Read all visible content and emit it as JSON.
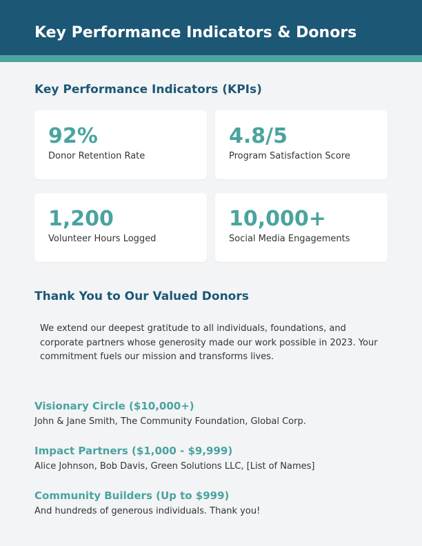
{
  "header": {
    "title": "Key Performance Indicators & Donors"
  },
  "kpis": {
    "title": "Key Performance Indicators (KPIs)",
    "items": [
      {
        "value": "92%",
        "label": "Donor Retention Rate"
      },
      {
        "value": "4.8/5",
        "label": "Program Satisfaction Score"
      },
      {
        "value": "1,200",
        "label": "Volunteer Hours Logged"
      },
      {
        "value": "10,000+",
        "label": "Social Media Engagements"
      }
    ]
  },
  "donors": {
    "title": "Thank You to Our Valued Donors",
    "message": "We extend our deepest gratitude to all individuals, foundations, and corporate partners whose generosity made our work possible in 2023. Your commitment fuels our mission and transforms lives.",
    "tiers": [
      {
        "name": "Visionary Circle ($10,000+)",
        "donors": "John & Jane Smith, The Community Foundation, Global Corp."
      },
      {
        "name": "Impact Partners ($1,000 - $9,999)",
        "donors": "Alice Johnson, Bob Davis, Green Solutions LLC, [List of Names]"
      },
      {
        "name": "Community Builders (Up to $999)",
        "donors": "And hundreds of generous individuals. Thank you!"
      }
    ]
  },
  "colors": {
    "header_bg": "#1c5775",
    "accent": "#4aa39f",
    "page_bg": "#f3f4f6",
    "text": "#333333"
  }
}
